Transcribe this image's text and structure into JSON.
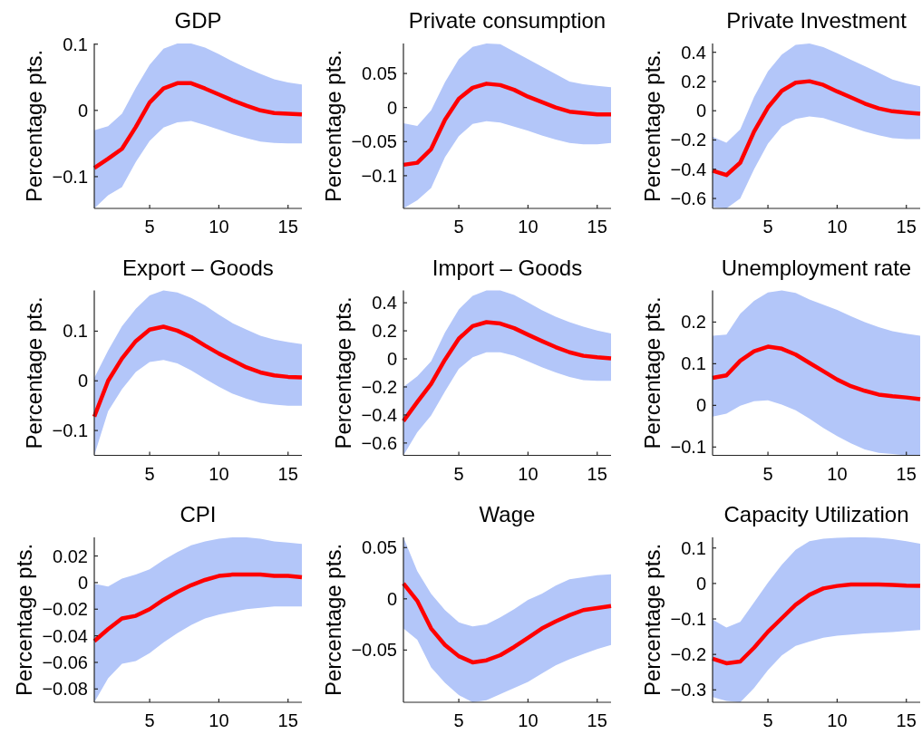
{
  "chart_data": [
    {
      "type": "line",
      "title": "GDP",
      "ylabel": "Percentage pts.",
      "x": [
        1,
        2,
        3,
        4,
        5,
        6,
        7,
        8,
        9,
        10,
        11,
        12,
        13,
        14,
        15,
        16
      ],
      "xlim": [
        1,
        16
      ],
      "xticks": [
        5,
        10,
        15
      ],
      "ylim": [
        -0.148,
        0.101
      ],
      "yticks": [
        -0.1,
        0,
        0.1
      ],
      "series": [
        {
          "color": "#ff0000",
          "values": [
            -0.087,
            -0.073,
            -0.058,
            -0.025,
            0.012,
            0.033,
            0.041,
            0.041,
            0.033,
            0.024,
            0.015,
            0.007,
            0.0,
            -0.004,
            -0.005,
            -0.006
          ],
          "upper": [
            -0.03,
            -0.024,
            -0.005,
            0.034,
            0.069,
            0.093,
            0.101,
            0.101,
            0.095,
            0.085,
            0.074,
            0.064,
            0.055,
            0.047,
            0.042,
            0.039
          ],
          "lower": [
            -0.148,
            -0.128,
            -0.116,
            -0.078,
            -0.046,
            -0.026,
            -0.018,
            -0.016,
            -0.022,
            -0.029,
            -0.036,
            -0.042,
            -0.047,
            -0.049,
            -0.05,
            -0.05
          ]
        }
      ]
    },
    {
      "type": "line",
      "title": "Private consumption",
      "ylabel": "Percentage pts.",
      "x": [
        1,
        2,
        3,
        4,
        5,
        6,
        7,
        8,
        9,
        10,
        11,
        12,
        13,
        14,
        15,
        16
      ],
      "xlim": [
        1,
        16
      ],
      "xticks": [
        5,
        10,
        15
      ],
      "ylim": [
        -0.148,
        0.094
      ],
      "yticks": [
        -0.1,
        -0.05,
        0,
        0.05
      ],
      "series": [
        {
          "color": "#ff0000",
          "values": [
            -0.084,
            -0.081,
            -0.061,
            -0.018,
            0.013,
            0.029,
            0.035,
            0.033,
            0.026,
            0.016,
            0.008,
            0.0,
            -0.006,
            -0.008,
            -0.01,
            -0.01
          ],
          "upper": [
            -0.023,
            -0.027,
            -0.004,
            0.037,
            0.071,
            0.089,
            0.094,
            0.093,
            0.082,
            0.071,
            0.06,
            0.049,
            0.038,
            0.034,
            0.032,
            0.03
          ],
          "lower": [
            -0.148,
            -0.136,
            -0.118,
            -0.073,
            -0.042,
            -0.024,
            -0.02,
            -0.022,
            -0.028,
            -0.034,
            -0.041,
            -0.047,
            -0.052,
            -0.054,
            -0.054,
            -0.052
          ]
        }
      ]
    },
    {
      "type": "line",
      "title": "Private Investment",
      "ylabel": "Percentage pts.",
      "x": [
        1,
        2,
        3,
        4,
        5,
        6,
        7,
        8,
        9,
        10,
        11,
        12,
        13,
        14,
        15,
        16
      ],
      "xlim": [
        1,
        16
      ],
      "xticks": [
        5,
        10,
        15
      ],
      "ylim": [
        -0.668,
        0.46
      ],
      "yticks": [
        -0.6,
        -0.4,
        -0.2,
        0,
        0.2,
        0.4
      ],
      "series": [
        {
          "color": "#ff0000",
          "values": [
            -0.41,
            -0.44,
            -0.355,
            -0.142,
            0.023,
            0.136,
            0.192,
            0.202,
            0.177,
            0.132,
            0.091,
            0.049,
            0.016,
            -0.004,
            -0.012,
            -0.021
          ],
          "upper": [
            -0.179,
            -0.219,
            -0.128,
            0.095,
            0.27,
            0.384,
            0.45,
            0.46,
            0.435,
            0.394,
            0.348,
            0.305,
            0.26,
            0.214,
            0.188,
            0.167
          ],
          "lower": [
            -0.658,
            -0.668,
            -0.6,
            -0.4,
            -0.225,
            -0.109,
            -0.056,
            -0.039,
            -0.049,
            -0.08,
            -0.111,
            -0.142,
            -0.167,
            -0.188,
            -0.194,
            -0.194
          ]
        }
      ]
    },
    {
      "type": "line",
      "title": "Export – Goods",
      "ylabel": "Percentage pts.",
      "x": [
        1,
        2,
        3,
        4,
        5,
        6,
        7,
        8,
        9,
        10,
        11,
        12,
        13,
        14,
        15,
        16
      ],
      "xlim": [
        1,
        16
      ],
      "xticks": [
        5,
        10,
        15
      ],
      "ylim": [
        -0.15,
        0.182
      ],
      "yticks": [
        -0.1,
        0,
        0.1
      ],
      "series": [
        {
          "color": "#ff0000",
          "values": [
            -0.072,
            0.0,
            0.045,
            0.08,
            0.103,
            0.109,
            0.101,
            0.088,
            0.071,
            0.055,
            0.041,
            0.027,
            0.017,
            0.011,
            0.008,
            0.007
          ],
          "upper": [
            0.006,
            0.061,
            0.11,
            0.145,
            0.172,
            0.182,
            0.178,
            0.167,
            0.152,
            0.133,
            0.116,
            0.103,
            0.091,
            0.083,
            0.078,
            0.074
          ],
          "lower": [
            -0.15,
            -0.061,
            -0.017,
            0.018,
            0.038,
            0.042,
            0.035,
            0.021,
            0.004,
            -0.012,
            -0.026,
            -0.036,
            -0.044,
            -0.048,
            -0.05,
            -0.05
          ]
        }
      ]
    },
    {
      "type": "line",
      "title": "Import – Goods",
      "ylabel": "Percentage pts.",
      "x": [
        1,
        2,
        3,
        4,
        5,
        6,
        7,
        8,
        9,
        10,
        11,
        12,
        13,
        14,
        15,
        16
      ],
      "xlim": [
        1,
        16
      ],
      "xticks": [
        5,
        10,
        15
      ],
      "ylim": [
        -0.688,
        0.488
      ],
      "yticks": [
        -0.6,
        -0.4,
        -0.2,
        0,
        0.2,
        0.4
      ],
      "series": [
        {
          "color": "#ff0000",
          "values": [
            -0.443,
            -0.308,
            -0.178,
            -0.006,
            0.144,
            0.234,
            0.262,
            0.252,
            0.219,
            0.172,
            0.127,
            0.084,
            0.047,
            0.022,
            0.011,
            0.004
          ],
          "upper": [
            -0.2,
            -0.125,
            -0.017,
            0.187,
            0.353,
            0.449,
            0.488,
            0.488,
            0.456,
            0.402,
            0.348,
            0.301,
            0.262,
            0.23,
            0.202,
            0.181
          ],
          "lower": [
            -0.688,
            -0.523,
            -0.404,
            -0.232,
            -0.071,
            0.011,
            0.047,
            0.047,
            0.022,
            -0.017,
            -0.06,
            -0.097,
            -0.129,
            -0.151,
            -0.157,
            -0.157
          ]
        }
      ]
    },
    {
      "type": "line",
      "title": "Unemployment rate",
      "ylabel": "Percentage pts.",
      "x": [
        1,
        2,
        3,
        4,
        5,
        6,
        7,
        8,
        9,
        10,
        11,
        12,
        13,
        14,
        15,
        16
      ],
      "xlim": [
        1,
        16
      ],
      "xticks": [
        5,
        10,
        15
      ],
      "ylim": [
        -0.12,
        0.276
      ],
      "yticks": [
        -0.1,
        0,
        0.1,
        0.2
      ],
      "series": [
        {
          "color": "#ff0000",
          "values": [
            0.066,
            0.072,
            0.107,
            0.13,
            0.141,
            0.136,
            0.122,
            0.102,
            0.082,
            0.062,
            0.046,
            0.035,
            0.026,
            0.022,
            0.019,
            0.015
          ],
          "upper": [
            0.167,
            0.17,
            0.22,
            0.251,
            0.271,
            0.276,
            0.27,
            0.254,
            0.242,
            0.229,
            0.214,
            0.2,
            0.188,
            0.178,
            0.172,
            0.167
          ],
          "lower": [
            -0.027,
            -0.02,
            -0.001,
            0.01,
            0.012,
            0.002,
            -0.012,
            -0.032,
            -0.054,
            -0.074,
            -0.091,
            -0.106,
            -0.114,
            -0.117,
            -0.12,
            -0.119
          ]
        }
      ]
    },
    {
      "type": "line",
      "title": "CPI",
      "ylabel": "Percentage pts.",
      "x": [
        1,
        2,
        3,
        4,
        5,
        6,
        7,
        8,
        9,
        10,
        11,
        12,
        13,
        14,
        15,
        16
      ],
      "xlim": [
        1,
        16
      ],
      "xticks": [
        5,
        10,
        15
      ],
      "ylim": [
        -0.09,
        0.034
      ],
      "yticks": [
        -0.08,
        -0.06,
        -0.04,
        -0.02,
        0,
        0.02
      ],
      "series": [
        {
          "color": "#ff0000",
          "values": [
            -0.044,
            -0.035,
            -0.027,
            -0.025,
            -0.02,
            -0.013,
            -0.007,
            -0.002,
            0.002,
            0.005,
            0.006,
            0.006,
            0.006,
            0.005,
            0.005,
            0.004
          ],
          "upper": [
            -0.001,
            -0.003,
            0.003,
            0.006,
            0.01,
            0.017,
            0.023,
            0.028,
            0.031,
            0.033,
            0.034,
            0.034,
            0.033,
            0.031,
            0.03,
            0.029
          ],
          "lower": [
            -0.09,
            -0.072,
            -0.061,
            -0.059,
            -0.053,
            -0.045,
            -0.038,
            -0.032,
            -0.027,
            -0.024,
            -0.022,
            -0.02,
            -0.019,
            -0.018,
            -0.018,
            -0.018
          ]
        }
      ]
    },
    {
      "type": "line",
      "title": "Wage",
      "ylabel": "Percentage pts.",
      "x": [
        1,
        2,
        3,
        4,
        5,
        6,
        7,
        8,
        9,
        10,
        11,
        12,
        13,
        14,
        15,
        16
      ],
      "xlim": [
        1,
        16
      ],
      "xticks": [
        5,
        10,
        15
      ],
      "ylim": [
        -0.101,
        0.06
      ],
      "yticks": [
        -0.05,
        0,
        0.05
      ],
      "series": [
        {
          "color": "#ff0000",
          "values": [
            0.015,
            -0.002,
            -0.029,
            -0.045,
            -0.056,
            -0.062,
            -0.06,
            -0.055,
            -0.047,
            -0.038,
            -0.029,
            -0.022,
            -0.016,
            -0.011,
            -0.009,
            -0.007
          ],
          "upper": [
            0.06,
            0.027,
            0.005,
            -0.011,
            -0.023,
            -0.027,
            -0.025,
            -0.018,
            -0.01,
            -0.001,
            0.005,
            0.013,
            0.019,
            0.021,
            0.023,
            0.024
          ],
          "lower": [
            -0.029,
            -0.04,
            -0.067,
            -0.082,
            -0.094,
            -0.101,
            -0.099,
            -0.093,
            -0.087,
            -0.081,
            -0.073,
            -0.065,
            -0.059,
            -0.054,
            -0.049,
            -0.045
          ]
        }
      ]
    },
    {
      "type": "line",
      "title": "Capacity Utilization",
      "ylabel": "Percentage pts.",
      "x": [
        1,
        2,
        3,
        4,
        5,
        6,
        7,
        8,
        9,
        10,
        11,
        12,
        13,
        14,
        15,
        16
      ],
      "xlim": [
        1,
        16
      ],
      "xticks": [
        5,
        10,
        15
      ],
      "ylim": [
        -0.335,
        0.13
      ],
      "yticks": [
        -0.3,
        -0.2,
        -0.1,
        0,
        0.1
      ],
      "series": [
        {
          "color": "#ff0000",
          "values": [
            -0.212,
            -0.225,
            -0.22,
            -0.181,
            -0.136,
            -0.098,
            -0.06,
            -0.032,
            -0.014,
            -0.007,
            -0.003,
            -0.003,
            -0.003,
            -0.004,
            -0.006,
            -0.007
          ],
          "upper": [
            -0.102,
            -0.124,
            -0.108,
            -0.053,
            0.002,
            0.053,
            0.095,
            0.119,
            0.126,
            0.129,
            0.13,
            0.13,
            0.129,
            0.125,
            0.119,
            0.112
          ],
          "lower": [
            -0.32,
            -0.331,
            -0.335,
            -0.295,
            -0.244,
            -0.203,
            -0.176,
            -0.164,
            -0.153,
            -0.147,
            -0.144,
            -0.141,
            -0.139,
            -0.137,
            -0.134,
            -0.131
          ]
        }
      ]
    }
  ]
}
